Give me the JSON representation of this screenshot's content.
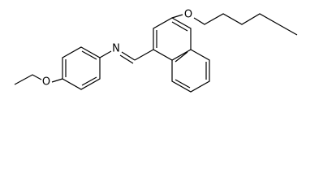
{
  "atoms": [
    {
      "label": "O"
    },
    {
      "label": "N"
    },
    {
      "label": "O"
    }
  ]
}
